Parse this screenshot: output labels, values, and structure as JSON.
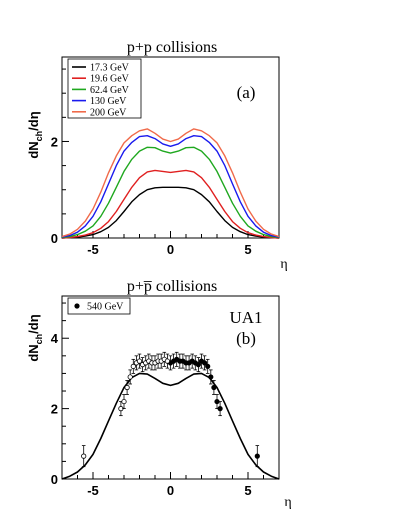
{
  "chart_data": [
    {
      "type": "line",
      "title": "p+p collisions",
      "panel_label": "(a)",
      "xlabel": "η",
      "ylabel": "dN",
      "ylabel_sub": "ch",
      "ylabel_tail": "/dη",
      "xlim": [
        -7,
        7
      ],
      "ylim": [
        0,
        3.75
      ],
      "xticks": [
        -5,
        0,
        5
      ],
      "yticks": [
        0,
        2
      ],
      "legend": "top-left",
      "grid": false,
      "series": [
        {
          "name": "17.3 GeV",
          "color": "#000000",
          "x": [
            -7,
            -6.5,
            -6,
            -5.5,
            -5,
            -4.5,
            -4,
            -3.5,
            -3,
            -2.5,
            -2,
            -1.5,
            -1,
            -0.5,
            0,
            0.5,
            1,
            1.5,
            2,
            2.5,
            3,
            3.5,
            4,
            4.5,
            5,
            5.5,
            6,
            6.5,
            7
          ],
          "y": [
            0,
            0.01,
            0.02,
            0.04,
            0.07,
            0.13,
            0.22,
            0.36,
            0.55,
            0.75,
            0.9,
            1.0,
            1.04,
            1.05,
            1.05,
            1.05,
            1.04,
            1.0,
            0.9,
            0.75,
            0.55,
            0.36,
            0.22,
            0.13,
            0.07,
            0.04,
            0.02,
            0.01,
            0
          ]
        },
        {
          "name": "19.6 GeV",
          "color": "#e02020",
          "x": [
            -7,
            -6.5,
            -6,
            -5.5,
            -5,
            -4.5,
            -4,
            -3.5,
            -3,
            -2.5,
            -2,
            -1.5,
            -1,
            -0.5,
            0,
            0.5,
            1,
            1.5,
            2,
            2.5,
            3,
            3.5,
            4,
            4.5,
            5,
            5.5,
            6,
            6.5,
            7
          ],
          "y": [
            0,
            0.01,
            0.03,
            0.06,
            0.11,
            0.2,
            0.34,
            0.55,
            0.8,
            1.05,
            1.25,
            1.37,
            1.4,
            1.38,
            1.36,
            1.38,
            1.4,
            1.37,
            1.25,
            1.05,
            0.8,
            0.55,
            0.34,
            0.2,
            0.11,
            0.06,
            0.03,
            0.01,
            0
          ]
        },
        {
          "name": "62.4 GeV",
          "color": "#1fa81f",
          "x": [
            -7,
            -6.5,
            -6,
            -5.5,
            -5,
            -4.5,
            -4,
            -3.5,
            -3,
            -2.5,
            -2,
            -1.5,
            -1,
            -0.5,
            0,
            0.5,
            1,
            1.5,
            2,
            2.5,
            3,
            3.5,
            4,
            4.5,
            5,
            5.5,
            6,
            6.5,
            7
          ],
          "y": [
            0.01,
            0.03,
            0.07,
            0.14,
            0.25,
            0.45,
            0.72,
            1.05,
            1.38,
            1.63,
            1.8,
            1.88,
            1.87,
            1.8,
            1.76,
            1.8,
            1.87,
            1.88,
            1.8,
            1.63,
            1.38,
            1.05,
            0.72,
            0.45,
            0.25,
            0.14,
            0.07,
            0.03,
            0.01
          ]
        },
        {
          "name": "130 GeV",
          "color": "#1a1aee",
          "x": [
            -7,
            -6.5,
            -6,
            -5.5,
            -5,
            -4.5,
            -4,
            -3.5,
            -3,
            -2.5,
            -2,
            -1.5,
            -1,
            -0.5,
            0,
            0.5,
            1,
            1.5,
            2,
            2.5,
            3,
            3.5,
            4,
            4.5,
            5,
            5.5,
            6,
            6.5,
            7
          ],
          "y": [
            0.02,
            0.05,
            0.12,
            0.25,
            0.45,
            0.75,
            1.12,
            1.5,
            1.8,
            1.98,
            2.1,
            2.12,
            2.06,
            1.95,
            1.9,
            1.95,
            2.06,
            2.12,
            2.1,
            1.98,
            1.8,
            1.5,
            1.12,
            0.75,
            0.45,
            0.25,
            0.12,
            0.05,
            0.02
          ]
        },
        {
          "name": "200 GeV",
          "color": "#f06a4a",
          "x": [
            -7,
            -6.5,
            -6,
            -5.5,
            -5,
            -4.5,
            -4,
            -3.5,
            -3,
            -2.5,
            -2,
            -1.5,
            -1,
            -0.5,
            0,
            0.5,
            1,
            1.5,
            2,
            2.5,
            3,
            3.5,
            4,
            4.5,
            5,
            5.5,
            6,
            6.5,
            7
          ],
          "y": [
            0.03,
            0.08,
            0.18,
            0.35,
            0.6,
            0.95,
            1.35,
            1.7,
            1.97,
            2.12,
            2.22,
            2.26,
            2.17,
            2.05,
            2.0,
            2.05,
            2.17,
            2.26,
            2.22,
            2.12,
            1.97,
            1.7,
            1.35,
            0.95,
            0.6,
            0.35,
            0.18,
            0.08,
            0.03
          ]
        }
      ]
    },
    {
      "type": "line",
      "title": "p+p̅ collisions",
      "panel_label_main": "UA1",
      "panel_label": "(b)",
      "xlabel": "η",
      "ylabel": "dN",
      "ylabel_sub": "ch",
      "ylabel_tail": "/dη",
      "xlim": [
        -7,
        7
      ],
      "ylim": [
        0,
        5.2
      ],
      "xticks": [
        -5,
        0,
        5
      ],
      "yticks": [
        0,
        2,
        4
      ],
      "legend": "top-left",
      "grid": false,
      "curve": {
        "color": "#000000",
        "x": [
          -7,
          -6.5,
          -6,
          -5.5,
          -5,
          -4.5,
          -4,
          -3.5,
          -3,
          -2.5,
          -2,
          -1.5,
          -1,
          -0.5,
          0,
          0.5,
          1,
          1.5,
          2,
          2.5,
          3,
          3.5,
          4,
          4.5,
          5,
          5.5,
          6,
          6.5,
          7
        ],
        "y": [
          0.0,
          0.08,
          0.2,
          0.4,
          0.7,
          1.15,
          1.65,
          2.15,
          2.6,
          2.88,
          3.0,
          2.98,
          2.86,
          2.72,
          2.66,
          2.72,
          2.86,
          2.98,
          3.0,
          2.88,
          2.6,
          2.15,
          1.65,
          1.15,
          0.7,
          0.4,
          0.2,
          0.08,
          0.0
        ]
      },
      "series": [
        {
          "name": "540 GeV",
          "marker": "filled-circle",
          "color": "#000000",
          "x": [
            0.0,
            0.2,
            0.4,
            0.6,
            0.8,
            1.0,
            1.2,
            1.4,
            1.6,
            1.8,
            2.0,
            2.2,
            2.4,
            2.6,
            2.8,
            3.0,
            3.2,
            5.6
          ],
          "y": [
            3.3,
            3.35,
            3.4,
            3.35,
            3.35,
            3.3,
            3.3,
            3.35,
            3.3,
            3.25,
            3.35,
            3.3,
            3.2,
            2.9,
            2.6,
            2.2,
            2.0,
            0.65
          ],
          "err": [
            0.2,
            0.2,
            0.2,
            0.2,
            0.2,
            0.2,
            0.2,
            0.2,
            0.2,
            0.2,
            0.2,
            0.2,
            0.2,
            0.2,
            0.2,
            0.2,
            0.2,
            0.3
          ]
        },
        {
          "name": "",
          "marker": "open-circle",
          "color": "#000000",
          "x": [
            -5.6,
            -3.2,
            -3.0,
            -2.8,
            -2.6,
            -2.4,
            -2.2,
            -2.0,
            -1.8,
            -1.6,
            -1.4,
            -1.2,
            -1.0,
            -0.8,
            -0.6,
            -0.4,
            -0.2
          ],
          "y": [
            0.65,
            2.0,
            2.2,
            2.6,
            2.9,
            3.2,
            3.3,
            3.35,
            3.25,
            3.3,
            3.35,
            3.3,
            3.3,
            3.35,
            3.35,
            3.4,
            3.35
          ],
          "err": [
            0.3,
            0.2,
            0.2,
            0.2,
            0.2,
            0.2,
            0.2,
            0.2,
            0.2,
            0.2,
            0.2,
            0.2,
            0.2,
            0.2,
            0.2,
            0.2,
            0.2
          ]
        }
      ]
    }
  ]
}
